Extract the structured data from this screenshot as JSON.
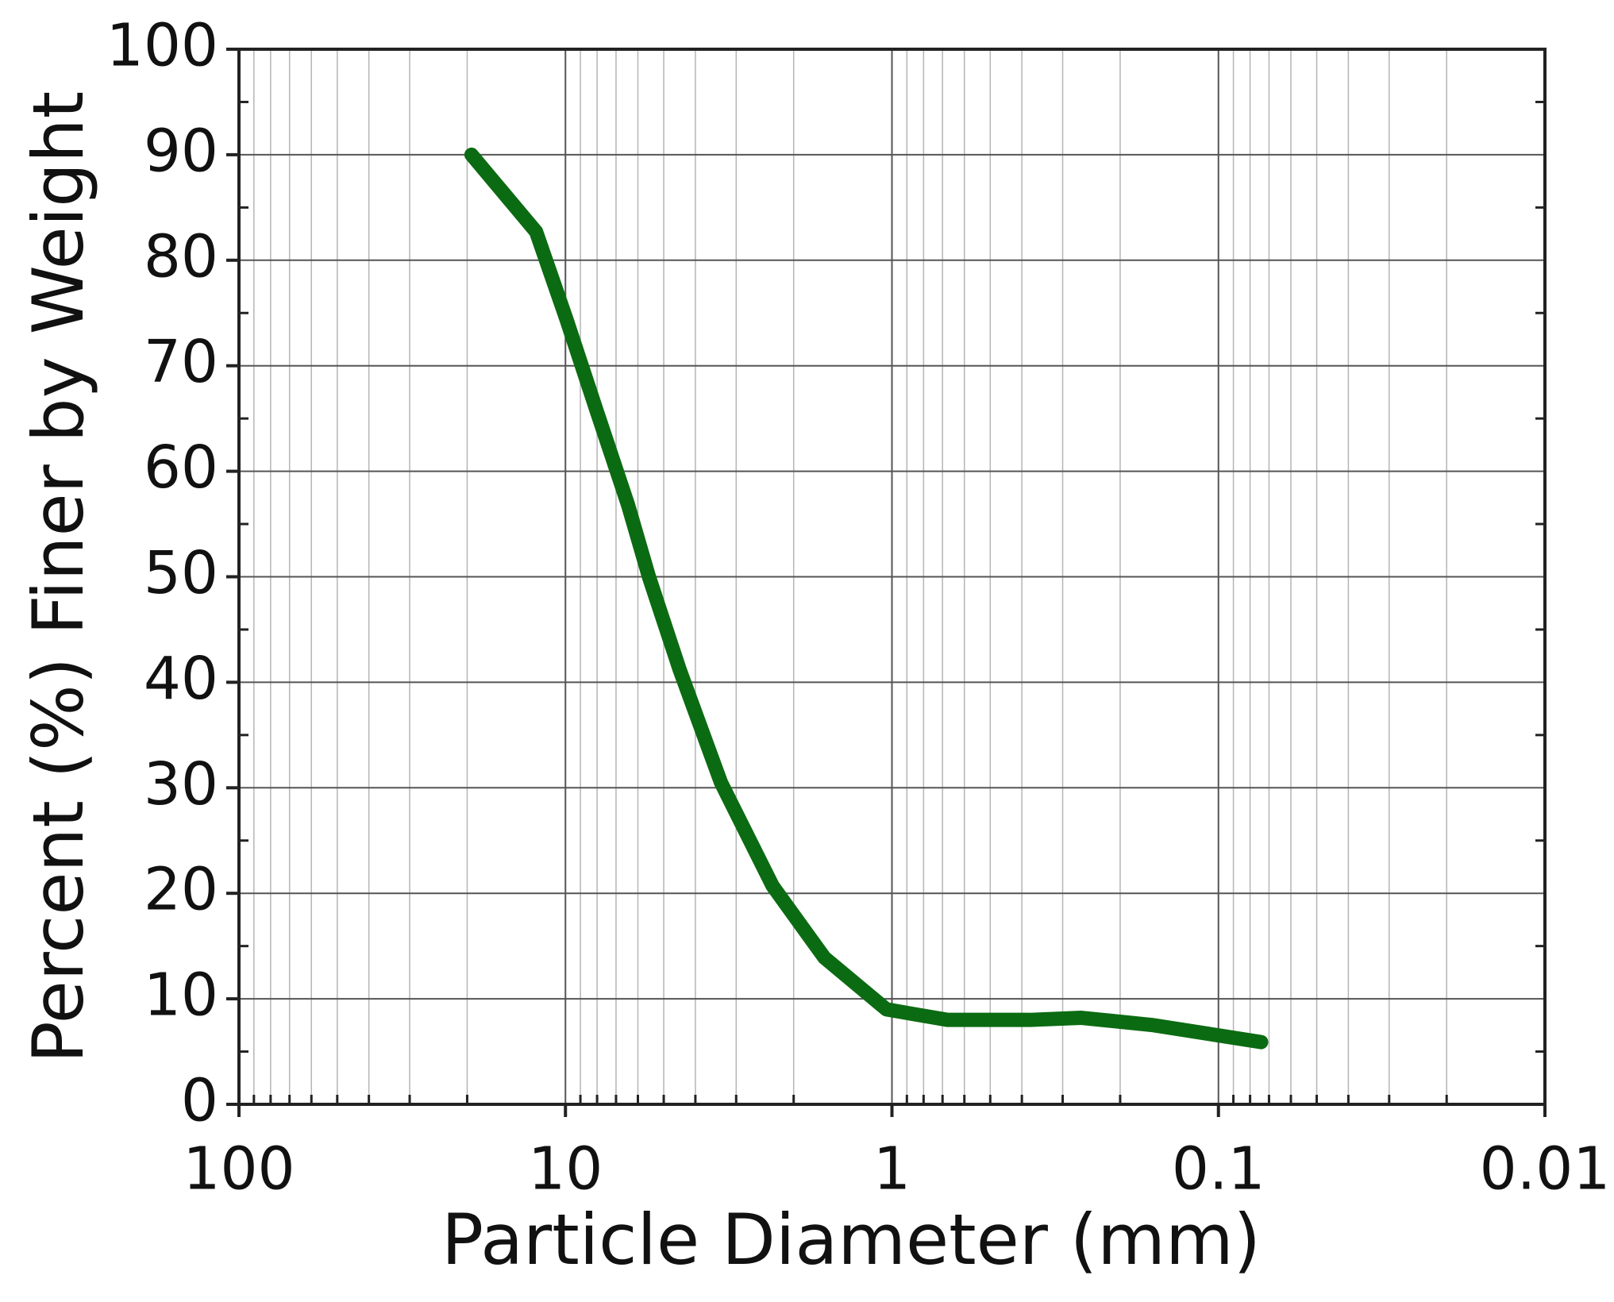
{
  "chart_data": {
    "type": "line",
    "xlabel": "Particle Diameter (mm)",
    "ylabel": "Percent (%) Finer by Weight",
    "x_scale": "log",
    "xlim": [
      100,
      0.01
    ],
    "xticks": [
      100,
      10,
      1,
      0.1,
      0.01
    ],
    "ylim": [
      0,
      100
    ],
    "yticks": [
      0,
      10,
      20,
      30,
      40,
      50,
      60,
      70,
      80,
      90,
      100
    ],
    "grid": true,
    "minor_grid": true,
    "x": [
      19.4,
      12.3,
      9.93,
      8.0,
      6.43,
      5.55,
      4.47,
      3.34,
      2.32,
      1.61,
      1.04,
      0.676,
      0.378,
      0.263,
      0.158,
      0.074
    ],
    "series": [
      {
        "color": "#0b6b12",
        "values": [
          90,
          82.7,
          74.4,
          65.6,
          56.8,
          50,
          41.2,
          30.5,
          20.7,
          13.9,
          9.0,
          8.0,
          8.0,
          8.2,
          7.5,
          5.9
        ]
      }
    ]
  }
}
